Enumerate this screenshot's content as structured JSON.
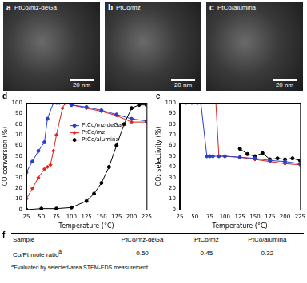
{
  "images": [
    {
      "label": "a",
      "caption": "PtCo/mz-deGa",
      "scale_bar": "20 nm"
    },
    {
      "label": "b",
      "caption": "PtCo/mz",
      "scale_bar": "20 nm"
    },
    {
      "label": "c",
      "caption": "PtCo/alumina",
      "scale_bar": "20 nm"
    }
  ],
  "chart_data": [
    {
      "type": "line",
      "panel_label": "d",
      "x_label": "Temperature (°C)",
      "y_label": "CO conversion (%)",
      "xlim": [
        25,
        225
      ],
      "xticks": [
        25,
        50,
        75,
        100,
        125,
        150,
        175,
        200,
        225
      ],
      "ylim": [
        0,
        100
      ],
      "yticks": [
        0,
        10,
        20,
        30,
        40,
        50,
        60,
        70,
        80,
        90,
        100
      ],
      "grid": false,
      "legend": "center",
      "series": [
        {
          "name": "PtCo/mz-deGa",
          "color": "#2a3fc8",
          "marker": "circle",
          "line_style": "solid",
          "x": [
            25,
            35,
            45,
            55,
            60,
            70,
            75,
            80,
            90,
            100,
            125,
            150,
            175,
            200,
            225
          ],
          "values": [
            35,
            45,
            55,
            63,
            85,
            100,
            100,
            100,
            100,
            98,
            96,
            93,
            89,
            85,
            83
          ]
        },
        {
          "name": "PtCo/mz",
          "color": "#e0201b",
          "marker": "diamond",
          "line_style": "solid",
          "x": [
            25,
            35,
            45,
            55,
            60,
            65,
            70,
            75,
            85,
            90,
            100,
            125,
            150,
            175,
            200,
            225
          ],
          "values": [
            10,
            20,
            30,
            38,
            40,
            42,
            55,
            70,
            95,
            100,
            98,
            95,
            92,
            88,
            82,
            82
          ]
        },
        {
          "name": "PtCo/alumina",
          "color": "#000000",
          "marker": "circle",
          "line_style": "solid",
          "x": [
            25,
            50,
            75,
            100,
            125,
            137.5,
            150,
            162.5,
            175,
            187.5,
            200,
            212.5,
            225
          ],
          "values": [
            0,
            1,
            1,
            2,
            8,
            15,
            25,
            40,
            60,
            80,
            95,
            98,
            98
          ]
        }
      ]
    },
    {
      "type": "line",
      "panel_label": "e",
      "x_label": "Temperature (°C)",
      "y_label": "CO₂ selectivity (%)",
      "xlim": [
        25,
        225
      ],
      "xticks": [
        25,
        50,
        75,
        100,
        125,
        150,
        175,
        200,
        225
      ],
      "ylim": [
        0,
        100
      ],
      "yticks": [
        0,
        10,
        20,
        30,
        40,
        50,
        60,
        70,
        80,
        90,
        100
      ],
      "grid": false,
      "series": [
        {
          "name": "PtCo/mz-deGa",
          "color": "#2a3fc8",
          "marker": "circle",
          "line_style": "solid",
          "x": [
            25,
            35,
            45,
            55,
            60,
            70,
            75,
            80,
            90,
            100,
            125,
            150,
            175,
            200,
            225
          ],
          "values": [
            100,
            100,
            100,
            100,
            100,
            50,
            50,
            50,
            50,
            50,
            49,
            48,
            46,
            45,
            43
          ]
        },
        {
          "name": "PtCo/mz",
          "color": "#e0201b",
          "marker": "diamond",
          "line_style": "solid",
          "x": [
            25,
            35,
            45,
            55,
            65,
            75,
            85,
            90,
            100,
            125,
            150,
            175,
            200,
            225
          ],
          "values": [
            100,
            100,
            100,
            100,
            100,
            100,
            100,
            50,
            50,
            49,
            47,
            45,
            43,
            42
          ]
        },
        {
          "name": "PtCo/alumina",
          "color": "#000000",
          "marker": "circle",
          "line_style": "solid",
          "x": [
            125,
            137.5,
            150,
            162.5,
            175,
            187.5,
            200,
            212.5,
            225
          ],
          "values": [
            57,
            52,
            50,
            53,
            47,
            48,
            47,
            48,
            46
          ]
        }
      ]
    }
  ],
  "table": {
    "panel_label": "f",
    "header": [
      "Sample",
      "PtCo/mz-deGa",
      "PtCo/mz",
      "PtCo/alumina"
    ],
    "rows": [
      {
        "cells": [
          "Co/Pt mole ratio",
          "0.50",
          "0.45",
          "0.32"
        ],
        "superscript": "a"
      }
    ],
    "footnote": {
      "mark": "a",
      "text": "Evaluated by selected-area STEM-EDS measurement"
    }
  }
}
